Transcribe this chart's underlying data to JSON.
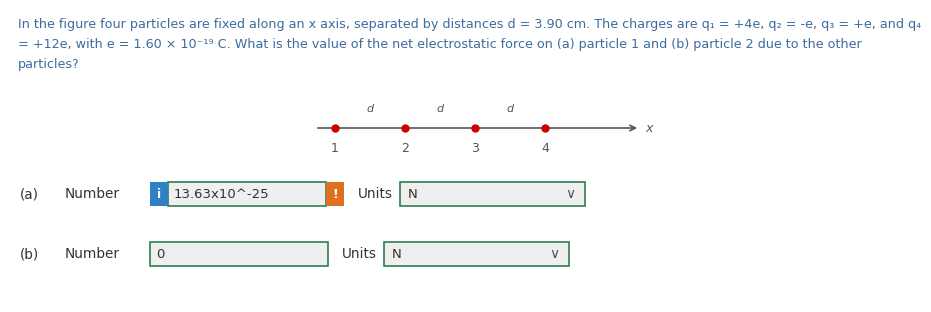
{
  "background_color": "#ffffff",
  "blue_text_color": "#3d6b9e",
  "black_text_color": "#333333",
  "axis_line_color": "#555555",
  "dot_color": "#cc0000",
  "problem_text_line1": "In the figure four particles are fixed along an x axis, separated by distances d = 3.90 cm. The charges are q₁ = +4e, q₂ = -e, q₃ = +e, and q₄",
  "problem_text_line2": "= +12e, with e = 1.60 × 10⁻¹⁹ C. What is the value of the net electrostatic force on (a) particle 1 and (b) particle 2 due to the other",
  "problem_text_line3": "particles?",
  "label_a": "(a)",
  "label_b": "(b)",
  "number_label": "Number",
  "units_label": "Units",
  "answer_a": "13.63x10^-25",
  "answer_b": "0",
  "unit_a": "N",
  "unit_b": "N",
  "blue_box_color": "#3080c8",
  "orange_box_color": "#e07020",
  "input_box_border": "#2e7d50",
  "input_bg": "#efefef",
  "font_size_problem": 9.2,
  "font_size_label": 9.8,
  "font_size_answer": 9.5
}
